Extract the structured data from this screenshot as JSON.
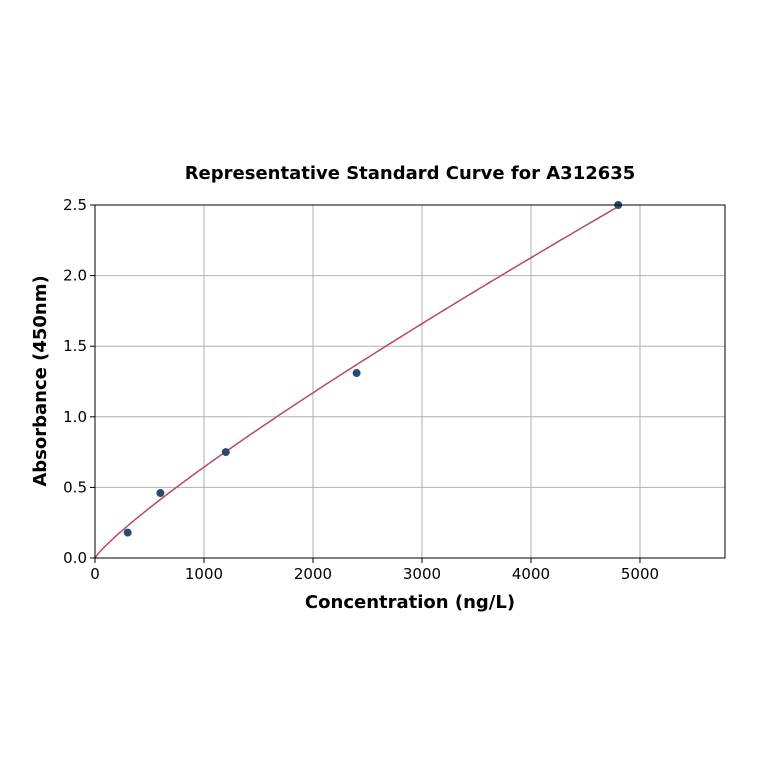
{
  "chart_data": {
    "type": "scatter",
    "title": "Representative Standard Curve for A312635",
    "xlabel": "Concentration (ng/L)",
    "ylabel": "Absorbance (450nm)",
    "xlim": [
      0,
      5780
    ],
    "ylim": [
      0,
      2.5
    ],
    "xticks": [
      0,
      1000,
      2000,
      3000,
      4000,
      5000
    ],
    "yticks": [
      0.0,
      0.5,
      1.0,
      1.5,
      2.0,
      2.5
    ],
    "xtick_labels": [
      "0",
      "1000",
      "2000",
      "3000",
      "4000",
      "5000"
    ],
    "ytick_labels": [
      "0.0",
      "0.5",
      "1.0",
      "1.5",
      "2.0",
      "2.5"
    ],
    "grid": true,
    "points": {
      "x": [
        300,
        600,
        1200,
        2400,
        4800
      ],
      "y": [
        0.18,
        0.46,
        0.75,
        1.31,
        2.5
      ]
    },
    "fit_curve": {
      "type": "power",
      "a": 0.00167,
      "b": 0.862,
      "x_range": [
        0,
        4800
      ]
    },
    "colors": {
      "points": "#2b4a6f",
      "curve": "#b8486a",
      "grid": "#b0b0b0"
    }
  }
}
